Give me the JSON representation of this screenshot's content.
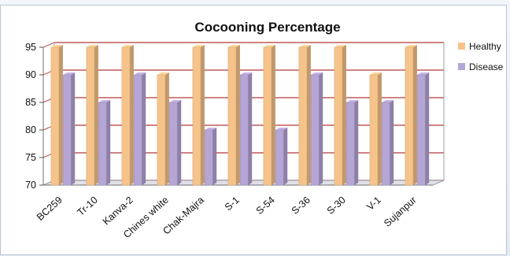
{
  "chart_data": {
    "type": "bar",
    "title": "Cocooning Percentage",
    "categories": [
      "BC259",
      "Tr-10",
      "Kanva-2",
      "Chines white",
      "Chak-Majra",
      "S-1",
      "S-54",
      "S-36",
      "S-30",
      "V-1",
      "Sujanpur"
    ],
    "series": [
      {
        "name": "Healthy",
        "values": [
          95,
          95,
          95,
          90,
          95,
          95,
          95,
          95,
          95,
          90,
          95
        ],
        "color": "#f6c38a"
      },
      {
        "name": "Disease",
        "values": [
          90,
          85,
          90,
          85,
          80,
          90,
          80,
          90,
          85,
          85,
          90
        ],
        "color": "#b6a6d6"
      }
    ],
    "ylim": [
      70,
      95
    ],
    "yticks": [
      70,
      75,
      80,
      85,
      90,
      95
    ],
    "grid": true,
    "legend": "right",
    "colors": {
      "gridline": "#c05a5a",
      "wall": "#ffffff",
      "floor": "#dfe1e6"
    }
  }
}
